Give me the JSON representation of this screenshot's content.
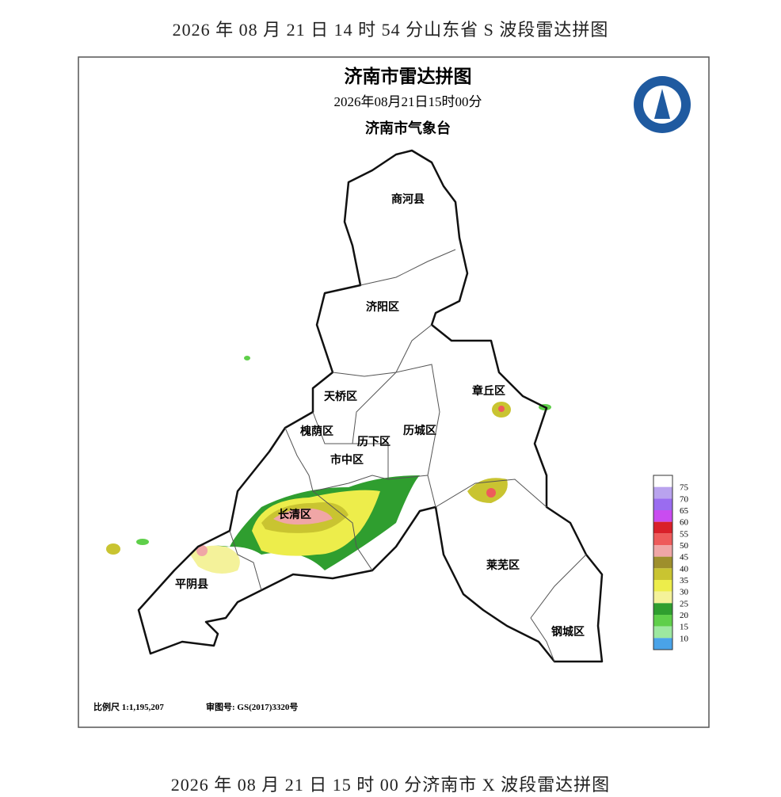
{
  "captions": {
    "top": "2026 年 08 月 21 日 14 时 54 分山东省 S 波段雷达拼图",
    "bottom": "2026 年 08 月 21 日 15 时 00 分济南市 X 波段雷达拼图"
  },
  "map": {
    "title": "济南市雷达拼图",
    "time": "2026年08月21日15时00分",
    "agency": "济南市气象台",
    "districts": [
      "商河县",
      "济阳区",
      "天桥区",
      "槐荫区",
      "历下区",
      "历城区",
      "市中区",
      "章丘区",
      "长清区",
      "平阴县",
      "莱芜区",
      "钢城区"
    ],
    "scale": "比例尺 1:1,195,207",
    "approval": "审图号: GS(2017)3320号"
  },
  "legend": {
    "ticks": [
      75,
      70,
      65,
      60,
      55,
      50,
      45,
      40,
      35,
      30,
      25,
      20,
      15,
      10
    ],
    "colors": [
      "#ffffff",
      "#b9a3ee",
      "#9a6cf0",
      "#c94cf0",
      "#d9202a",
      "#ee5b5b",
      "#f0a6a6",
      "#9e8f2c",
      "#c9c431",
      "#eded4b",
      "#f4f29a",
      "#2f9e2f",
      "#5fcf4a",
      "#9de8a0",
      "#4aa3e8"
    ]
  }
}
